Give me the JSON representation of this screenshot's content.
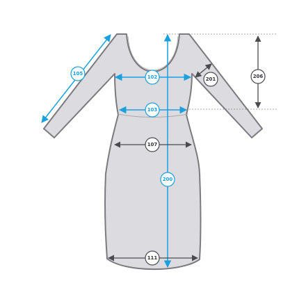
{
  "colors": {
    "dress_fill": "#dcdbe0",
    "dress_stroke": "#7a7a7f",
    "measure_blue": "#1a9fdf",
    "measure_dark": "#4a4a4f",
    "dashed_guide": "#8a8a8f"
  },
  "measurements": {
    "sleeve_length": "105",
    "chest_width": "102",
    "waist_width": "103",
    "hip_width": "107",
    "total_length": "200",
    "hem_width": "111",
    "armhole_depth": "201",
    "shoulder_to_waist": "206"
  }
}
